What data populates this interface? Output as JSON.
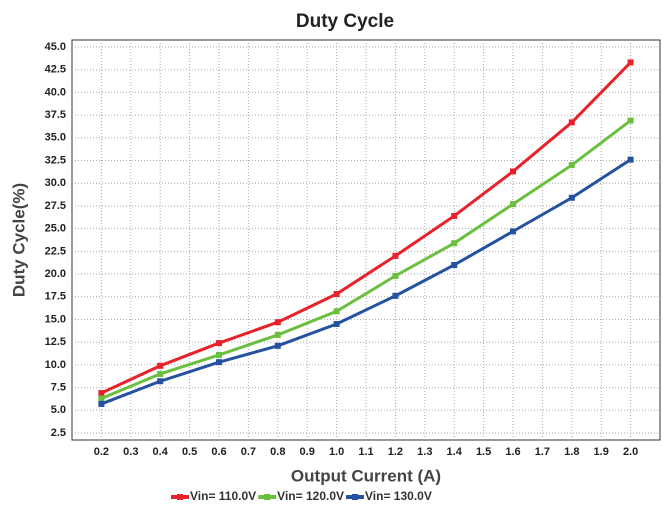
{
  "chart_data": {
    "type": "line",
    "title": "Duty Cycle",
    "x_label": "Output Current (A)",
    "y_label": "Duty Cycle(%)",
    "x": [
      0.2,
      0.4,
      0.6,
      0.8,
      1.0,
      1.2,
      1.4,
      1.6,
      1.8,
      2.0
    ],
    "series": [
      {
        "name": "Vin= 110.0V",
        "color": "#e8212a",
        "values": [
          6.9,
          9.9,
          12.4,
          14.7,
          17.8,
          22.0,
          26.4,
          31.3,
          36.7,
          43.3
        ]
      },
      {
        "name": "Vin= 120.0V",
        "color": "#6bbf3f",
        "values": [
          6.3,
          9.0,
          11.1,
          13.3,
          15.9,
          19.8,
          23.4,
          27.7,
          32.0,
          36.9
        ]
      },
      {
        "name": "Vin= 130.0V",
        "color": "#2452a0",
        "values": [
          5.7,
          8.2,
          10.3,
          12.1,
          14.5,
          17.6,
          21.0,
          24.7,
          28.4,
          32.6
        ]
      }
    ],
    "xlim": [
      0.1,
      2.1
    ],
    "xticks": [
      0.2,
      0.3,
      0.4,
      0.5,
      0.6,
      0.7,
      0.8,
      0.9,
      {
        "value": 1,
        "label": "1.0"
      },
      1.1,
      1.2,
      1.3,
      1.4,
      1.5,
      1.6,
      1.7,
      1.8,
      1.9,
      {
        "value": 2,
        "label": "2.0"
      }
    ],
    "ylim": [
      2.5,
      45
    ],
    "yticks": [
      2.5,
      {
        "value": 5,
        "label": "5.0"
      },
      7.5,
      {
        "value": 10,
        "label": "10.0"
      },
      12.5,
      {
        "value": 15,
        "label": "15.0"
      },
      17.5,
      {
        "value": 20,
        "label": "20.0"
      },
      22.5,
      {
        "value": 25,
        "label": "25.0"
      },
      27.5,
      {
        "value": 30,
        "label": "30.0"
      },
      32.5,
      {
        "value": 35,
        "label": "35.0"
      },
      37.5,
      {
        "value": 40,
        "label": "40.0"
      },
      42.5,
      {
        "value": 45,
        "label": "45.0"
      }
    ],
    "grid": true,
    "legend": "bottom"
  }
}
